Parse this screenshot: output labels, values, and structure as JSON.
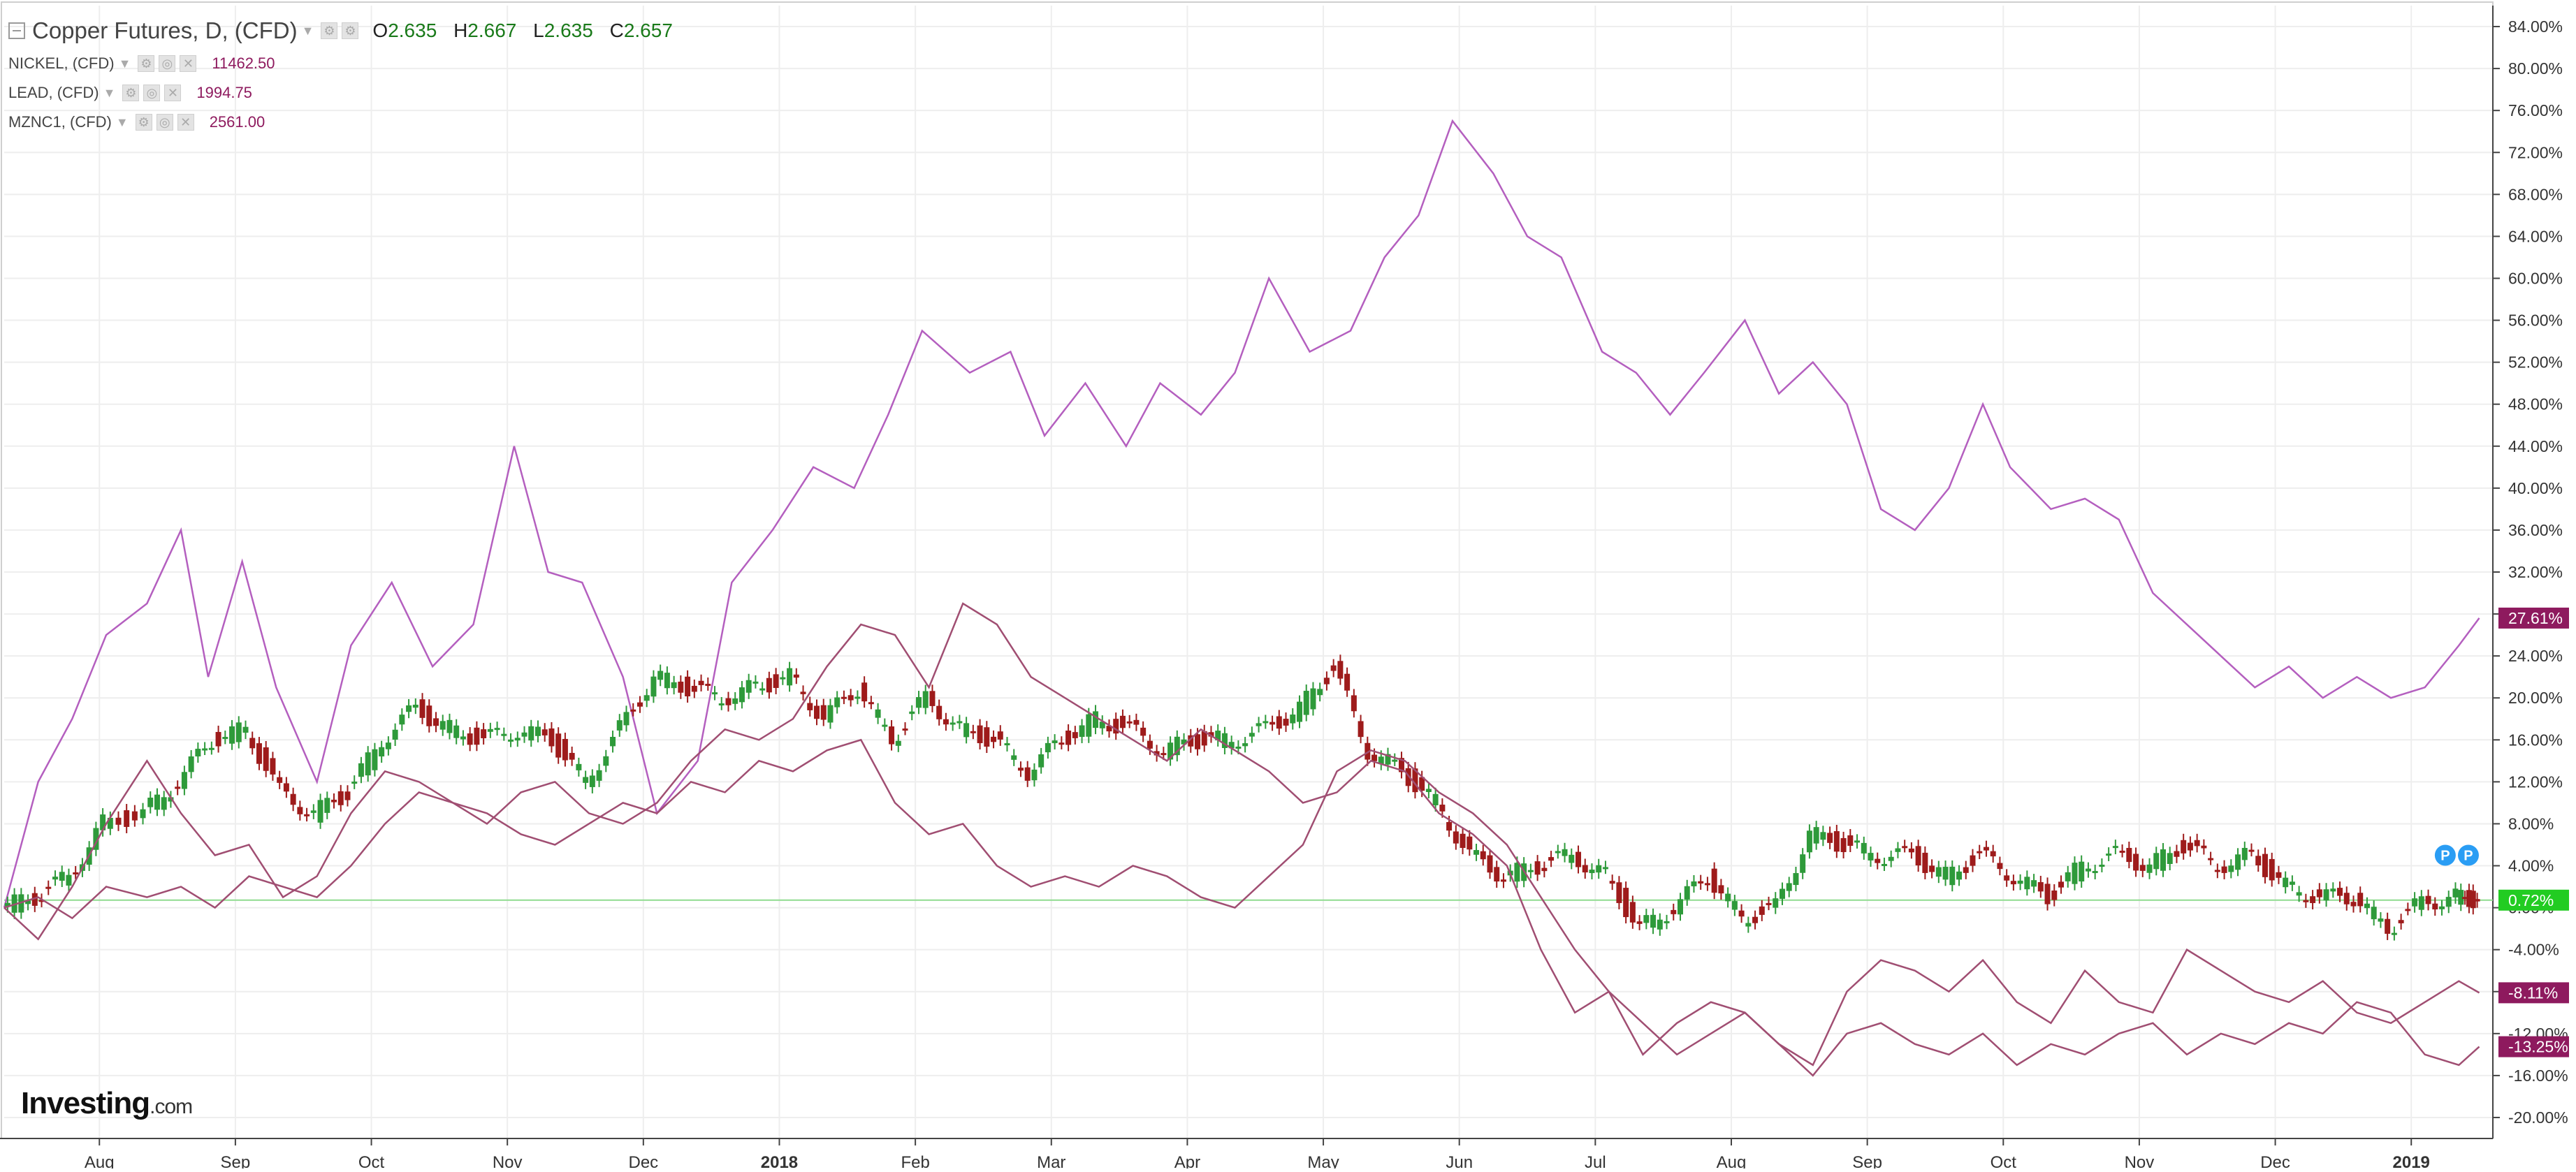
{
  "legend": {
    "main": {
      "title": "Copper Futures, D, (CFD)",
      "o_label": "O",
      "o": "2.635",
      "h_label": "H",
      "h": "2.667",
      "l_label": "L",
      "l": "2.635",
      "c_label": "C",
      "c": "2.657"
    },
    "comparisons": [
      {
        "name": "NICKEL, (CFD)",
        "value": "11462.50",
        "color": "#8e1a5e"
      },
      {
        "name": "LEAD, (CFD)",
        "value": "1994.75",
        "color": "#8e1a5e"
      },
      {
        "name": "MZNC1, (CFD)",
        "value": "2561.00",
        "color": "#8e1a5e"
      }
    ]
  },
  "logo": {
    "brand": "Investing",
    "suffix": ".com"
  },
  "colors": {
    "up": "#2e9a3a",
    "down": "#9e1b1b",
    "nickel": "#b45fbf",
    "compare": "#a04e72",
    "baseline": "#8fdc8f",
    "grid": "#eeeeee",
    "axis": "#444444"
  },
  "chart_data": {
    "type": "line",
    "y_unit": "percent change",
    "ylim": [
      -22,
      86
    ],
    "y_ticks": [
      "84.00%",
      "80.00%",
      "76.00%",
      "72.00%",
      "68.00%",
      "64.00%",
      "60.00%",
      "56.00%",
      "52.00%",
      "48.00%",
      "44.00%",
      "40.00%",
      "36.00%",
      "32.00%",
      "28.00%",
      "24.00%",
      "20.00%",
      "16.00%",
      "12.00%",
      "8.00%",
      "4.00%",
      "0.00%",
      "-4.00%",
      "-8.00%",
      "-12.00%",
      "-16.00%",
      "-20.00%"
    ],
    "x_ticks": [
      "Aug",
      "Sep",
      "Oct",
      "Nov",
      "Dec",
      "2018",
      "Feb",
      "Mar",
      "Apr",
      "May",
      "Jun",
      "Jul",
      "Aug",
      "Sep",
      "Oct",
      "Nov",
      "Dec",
      "2019"
    ],
    "x_tick_months": [
      1,
      2,
      3,
      4,
      5,
      6,
      7,
      8,
      9,
      10,
      11,
      12,
      13,
      14,
      15,
      16,
      17,
      18
    ],
    "x_range_months": [
      0.3,
      18.6
    ],
    "last_value_labels": [
      {
        "series": "NICKEL, (CFD)",
        "text": "27.61%",
        "value": 27.61,
        "bg": "#8e1a5e"
      },
      {
        "series": "Copper Futures, D, (CFD)",
        "text": "0.72%",
        "value": 0.72,
        "bg": "#22cc22"
      },
      {
        "series": "MZNC1, (CFD)",
        "text": "-8.11%",
        "value": -8.11,
        "bg": "#8e1a5e"
      },
      {
        "series": "LEAD, (CFD)",
        "text": "-13.25%",
        "value": -13.25,
        "bg": "#8e1a5e"
      }
    ],
    "baseline": 0.72,
    "series": [
      {
        "name": "NICKEL, (CFD)",
        "style": "line",
        "x": [
          0.3,
          0.55,
          0.8,
          1.05,
          1.35,
          1.6,
          1.8,
          2.05,
          2.3,
          2.6,
          2.85,
          3.15,
          3.45,
          3.75,
          4.05,
          4.3,
          4.55,
          4.85,
          5.1,
          5.4,
          5.65,
          5.95,
          6.25,
          6.55,
          6.8,
          7.05,
          7.4,
          7.7,
          7.95,
          8.25,
          8.55,
          8.8,
          9.1,
          9.35,
          9.6,
          9.9,
          10.2,
          10.45,
          10.7,
          10.95,
          11.25,
          11.5,
          11.75,
          12.05,
          12.3,
          12.55,
          12.8,
          13.1,
          13.35,
          13.6,
          13.85,
          14.1,
          14.35,
          14.6,
          14.85,
          15.05,
          15.35,
          15.6,
          15.85,
          16.1,
          16.35,
          16.6,
          16.85,
          17.1,
          17.35,
          17.6,
          17.85,
          18.1,
          18.35,
          18.5
        ],
        "y": [
          0,
          12,
          18,
          26,
          29,
          36,
          22,
          33,
          21,
          12,
          25,
          31,
          23,
          27,
          44,
          32,
          31,
          22,
          9,
          14,
          31,
          36,
          42,
          40,
          47,
          55,
          51,
          53,
          45,
          50,
          44,
          50,
          47,
          51,
          60,
          53,
          55,
          62,
          66,
          75,
          70,
          64,
          62,
          53,
          51,
          47,
          51,
          56,
          49,
          52,
          48,
          38,
          36,
          40,
          48,
          42,
          38,
          39,
          37,
          30,
          27,
          24,
          21,
          23,
          20,
          22,
          20,
          21,
          25,
          27.61
        ]
      },
      {
        "name": "Copper Futures, D, (CFD)",
        "style": "candles",
        "x": [
          0.3,
          0.55,
          0.8,
          1.05,
          1.35,
          1.6,
          1.85,
          2.1,
          2.35,
          2.6,
          2.85,
          3.1,
          3.35,
          3.6,
          3.85,
          4.1,
          4.35,
          4.6,
          4.85,
          5.1,
          5.35,
          5.6,
          5.85,
          6.1,
          6.35,
          6.6,
          6.85,
          7.1,
          7.35,
          7.6,
          7.85,
          8.1,
          8.35,
          8.6,
          8.85,
          9.1,
          9.35,
          9.6,
          9.85,
          10.1,
          10.35,
          10.6,
          10.85,
          11.1,
          11.35,
          11.6,
          11.85,
          12.1,
          12.35,
          12.6,
          12.85,
          13.1,
          13.35,
          13.6,
          13.85,
          14.1,
          14.35,
          14.6,
          14.85,
          15.1,
          15.35,
          15.6,
          15.85,
          16.1,
          16.35,
          16.6,
          16.85,
          17.1,
          17.35,
          17.6,
          17.85,
          18.1,
          18.35,
          18.5
        ],
        "y": [
          0,
          1,
          3,
          8,
          9,
          12,
          16,
          17,
          11,
          9,
          11,
          16,
          19,
          17,
          16,
          17,
          16,
          12,
          17,
          22,
          21,
          20,
          21,
          22,
          18,
          21,
          16,
          20,
          17,
          16,
          13,
          16,
          18,
          17,
          15,
          16,
          16,
          17,
          19,
          23,
          15,
          13,
          10,
          5,
          3,
          4,
          5,
          3,
          -2,
          0,
          3,
          -1,
          0,
          7,
          6,
          5,
          5,
          3,
          5,
          3,
          1,
          4,
          5,
          4,
          6,
          4,
          5,
          2,
          1,
          1,
          -2,
          0.5,
          1,
          0.72
        ]
      },
      {
        "name": "MZNC1, (CFD)",
        "style": "line",
        "x": [
          0.3,
          0.55,
          0.8,
          1.05,
          1.35,
          1.6,
          1.85,
          2.1,
          2.35,
          2.6,
          2.85,
          3.1,
          3.35,
          3.6,
          3.85,
          4.1,
          4.35,
          4.6,
          4.85,
          5.1,
          5.35,
          5.6,
          5.85,
          6.1,
          6.35,
          6.6,
          6.85,
          7.1,
          7.35,
          7.6,
          7.85,
          8.1,
          8.35,
          8.6,
          8.85,
          9.1,
          9.35,
          9.6,
          9.85,
          10.1,
          10.35,
          10.6,
          10.85,
          11.1,
          11.35,
          11.6,
          11.85,
          12.1,
          12.35,
          12.6,
          12.85,
          13.1,
          13.35,
          13.6,
          13.85,
          14.1,
          14.35,
          14.6,
          14.85,
          15.1,
          15.35,
          15.6,
          15.85,
          16.1,
          16.35,
          16.6,
          16.85,
          17.1,
          17.35,
          17.6,
          17.85,
          18.1,
          18.35,
          18.5
        ],
        "y": [
          0,
          -3,
          2,
          8,
          14,
          9,
          5,
          6,
          1,
          3,
          9,
          13,
          12,
          10,
          8,
          11,
          12,
          9,
          8,
          10,
          14,
          17,
          16,
          18,
          23,
          27,
          26,
          21,
          29,
          27,
          22,
          20,
          18,
          16,
          14,
          17,
          15,
          13,
          10,
          11,
          14,
          13,
          9,
          7,
          4,
          -4,
          -10,
          -8,
          -14,
          -11,
          -9,
          -10,
          -13,
          -15,
          -8,
          -5,
          -6,
          -8,
          -5,
          -9,
          -11,
          -6,
          -9,
          -10,
          -4,
          -6,
          -8,
          -9,
          -7,
          -10,
          -11,
          -9,
          -7,
          -8.11
        ]
      },
      {
        "name": "LEAD, (CFD)",
        "style": "line",
        "x": [
          0.3,
          0.55,
          0.8,
          1.05,
          1.35,
          1.6,
          1.85,
          2.1,
          2.35,
          2.6,
          2.85,
          3.1,
          3.35,
          3.6,
          3.85,
          4.1,
          4.35,
          4.6,
          4.85,
          5.1,
          5.35,
          5.6,
          5.85,
          6.1,
          6.35,
          6.6,
          6.85,
          7.1,
          7.35,
          7.6,
          7.85,
          8.1,
          8.35,
          8.6,
          8.85,
          9.1,
          9.35,
          9.6,
          9.85,
          10.1,
          10.35,
          10.6,
          10.85,
          11.1,
          11.35,
          11.6,
          11.85,
          12.1,
          12.35,
          12.6,
          12.85,
          13.1,
          13.35,
          13.6,
          13.85,
          14.1,
          14.35,
          14.6,
          14.85,
          15.1,
          15.35,
          15.6,
          15.85,
          16.1,
          16.35,
          16.6,
          16.85,
          17.1,
          17.35,
          17.6,
          17.85,
          18.1,
          18.35,
          18.5
        ],
        "y": [
          0,
          1,
          -1,
          2,
          1,
          2,
          0,
          3,
          2,
          1,
          4,
          8,
          11,
          10,
          9,
          7,
          6,
          8,
          10,
          9,
          12,
          11,
          14,
          13,
          15,
          16,
          10,
          7,
          8,
          4,
          2,
          3,
          2,
          4,
          3,
          1,
          0,
          3,
          6,
          13,
          15,
          14,
          11,
          9,
          6,
          1,
          -4,
          -8,
          -11,
          -14,
          -12,
          -10,
          -13,
          -16,
          -12,
          -11,
          -13,
          -14,
          -12,
          -15,
          -13,
          -14,
          -12,
          -11,
          -14,
          -12,
          -13,
          -11,
          -12,
          -9,
          -10,
          -14,
          -15,
          -13.25
        ]
      }
    ]
  }
}
